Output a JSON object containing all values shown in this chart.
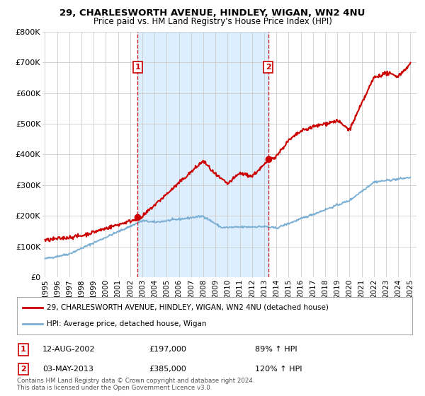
{
  "title": "29, CHARLESWORTH AVENUE, HINDLEY, WIGAN, WN2 4NU",
  "subtitle": "Price paid vs. HM Land Registry's House Price Index (HPI)",
  "legend_line1": "29, CHARLESWORTH AVENUE, HINDLEY, WIGAN, WN2 4NU (detached house)",
  "legend_line2": "HPI: Average price, detached house, Wigan",
  "footer": "Contains HM Land Registry data © Crown copyright and database right 2024.\nThis data is licensed under the Open Government Licence v3.0.",
  "table_rows": [
    {
      "num": "1",
      "date": "12-AUG-2002",
      "price": "£197,000",
      "hpi": "89% ↑ HPI"
    },
    {
      "num": "2",
      "date": "03-MAY-2013",
      "price": "£385,000",
      "hpi": "120% ↑ HPI"
    }
  ],
  "vline1_x": 2002.62,
  "vline2_x": 2013.33,
  "point1_x": 2002.62,
  "point1_y": 197000,
  "point2_x": 2013.33,
  "point2_y": 385000,
  "ylim": [
    0,
    800000
  ],
  "xlim": [
    1994.8,
    2025.5
  ],
  "yticks": [
    0,
    100000,
    200000,
    300000,
    400000,
    500000,
    600000,
    700000,
    800000
  ],
  "ytick_labels": [
    "£0",
    "£100K",
    "£200K",
    "£300K",
    "£400K",
    "£500K",
    "£600K",
    "£700K",
    "£800K"
  ],
  "xticks": [
    1995,
    1996,
    1997,
    1998,
    1999,
    2000,
    2001,
    2002,
    2003,
    2004,
    2005,
    2006,
    2007,
    2008,
    2009,
    2010,
    2011,
    2012,
    2013,
    2014,
    2015,
    2016,
    2017,
    2018,
    2019,
    2020,
    2021,
    2022,
    2023,
    2024,
    2025
  ],
  "red_color": "#cc0000",
  "blue_color": "#7bafd4",
  "vline_color": "#cc0000",
  "grid_color": "#cccccc",
  "bg_color": "#ffffff",
  "shade_color": "#ddeeff"
}
